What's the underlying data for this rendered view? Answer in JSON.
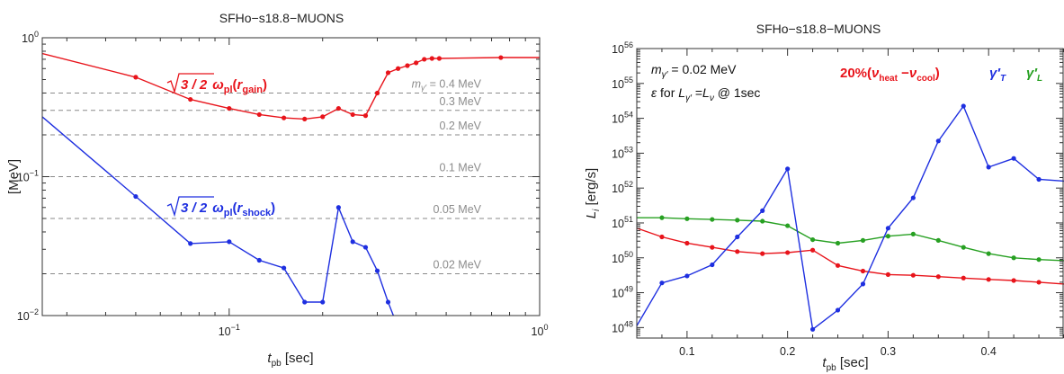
{
  "chart_data": [
    {
      "type": "line",
      "title": "SFHo−s18.8−MUONS",
      "xlabel_main": "t",
      "xlabel_sub": "pb",
      "xlabel_unit": " [sec]",
      "ylabel": "[MeV]",
      "xscale": "log",
      "yscale": "log",
      "xlim": [
        0.025,
        1.0
      ],
      "ylim": [
        0.01,
        1.0
      ],
      "x_ticks": [
        {
          "v": 0.1,
          "base": "10",
          "exp": "−1"
        },
        {
          "v": 1.0,
          "base": "10",
          "exp": "0"
        }
      ],
      "y_ticks": [
        {
          "v": 0.01,
          "base": "10",
          "exp": "−2"
        },
        {
          "v": 0.1,
          "base": "10",
          "exp": "−1"
        },
        {
          "v": 1.0,
          "base": "10",
          "exp": "0"
        }
      ],
      "reference_lines": [
        {
          "y": 0.4,
          "label_sym": "m",
          "label_sub": "γ′",
          "label_value": " = 0.4 MeV"
        },
        {
          "y": 0.3,
          "label": "0.3 MeV"
        },
        {
          "y": 0.2,
          "label": "0.2 MeV"
        },
        {
          "y": 0.1,
          "label": "0.1 MeV"
        },
        {
          "y": 0.05,
          "label": "0.05 MeV"
        },
        {
          "y": 0.02,
          "label": "0.02 MeV"
        }
      ],
      "series": [
        {
          "color": "#e8141b",
          "annotation": {
            "root": "3 / 2",
            "sym": "ω",
            "sub": "pl",
            "arg": "r",
            "arg_sub": "gain"
          },
          "x": [
            0.025,
            0.05,
            0.075,
            0.1,
            0.125,
            0.15,
            0.175,
            0.2,
            0.225,
            0.25,
            0.275,
            0.3,
            0.325,
            0.35,
            0.375,
            0.4,
            0.425,
            0.45,
            0.475,
            0.75,
            1.0
          ],
          "y": [
            0.77,
            0.52,
            0.36,
            0.31,
            0.28,
            0.265,
            0.26,
            0.27,
            0.31,
            0.28,
            0.275,
            0.4,
            0.56,
            0.6,
            0.63,
            0.66,
            0.7,
            0.71,
            0.71,
            0.72,
            0.72
          ]
        },
        {
          "color": "#1e2fe0",
          "annotation": {
            "root": "3 / 2",
            "sym": "ω",
            "sub": "pl",
            "arg": "r",
            "arg_sub": "shock"
          },
          "x": [
            0.025,
            0.05,
            0.075,
            0.1,
            0.125,
            0.15,
            0.175,
            0.2,
            0.225,
            0.25,
            0.275,
            0.3,
            0.325,
            0.35
          ],
          "y": [
            0.27,
            0.072,
            0.033,
            0.034,
            0.025,
            0.022,
            0.0125,
            0.0125,
            0.06,
            0.034,
            0.031,
            0.021,
            0.0125,
            0.0082
          ]
        }
      ]
    },
    {
      "type": "line",
      "title": "SFHo−s18.8−MUONS",
      "xlabel_main": "t",
      "xlabel_sub": "pb",
      "xlabel_unit": " [sec]",
      "ylabel_main": "L",
      "ylabel_sub": "i",
      "ylabel_unit": " [erg/s]",
      "xscale": "linear",
      "yscale": "log",
      "xlim": [
        0.05,
        0.475
      ],
      "ylim": [
        47.7,
        56
      ],
      "x_ticks": [
        {
          "v": 0.1,
          "label": "0.1"
        },
        {
          "v": 0.2,
          "label": "0.2"
        },
        {
          "v": 0.3,
          "label": "0.3"
        },
        {
          "v": 0.4,
          "label": "0.4"
        }
      ],
      "y_ticks": [
        {
          "v": 48,
          "base": "10",
          "exp": "48"
        },
        {
          "v": 49,
          "base": "10",
          "exp": "49"
        },
        {
          "v": 50,
          "base": "10",
          "exp": "50"
        },
        {
          "v": 51,
          "base": "10",
          "exp": "51"
        },
        {
          "v": 52,
          "base": "10",
          "exp": "52"
        },
        {
          "v": 53,
          "base": "10",
          "exp": "53"
        },
        {
          "v": 54,
          "base": "10",
          "exp": "54"
        },
        {
          "v": 55,
          "base": "10",
          "exp": "55"
        },
        {
          "v": 56,
          "base": "10",
          "exp": "56"
        }
      ],
      "annotations": {
        "mass_sym": "m",
        "mass_sub": "γ′",
        "mass_value": " = 0.02 MeV",
        "eps_sym": "ε",
        "eps_text": "  for  ",
        "eps_L": "L",
        "eps_Lsub": "γ′",
        "eps_eq": " =",
        "eps_L2": "L",
        "eps_L2sub": "ν",
        "eps_tail": " @ 1sec"
      },
      "legend": [
        {
          "color": "#e8141b",
          "text_pre": "20%(",
          "sym1": "ν",
          "sub1": "heat",
          "mid": " −",
          "sym2": "ν",
          "sub2": "cool",
          "text_post": ")"
        },
        {
          "color": "#1e2fe0",
          "sym": "γ′",
          "sub": "T"
        },
        {
          "color": "#27a022",
          "sym": "γ′",
          "sub": "L"
        }
      ],
      "series": [
        {
          "color": "#e8141b",
          "x": [
            0.05,
            0.075,
            0.1,
            0.125,
            0.15,
            0.175,
            0.2,
            0.225,
            0.25,
            0.275,
            0.3,
            0.325,
            0.35,
            0.375,
            0.4,
            0.425,
            0.45,
            0.475
          ],
          "y": [
            50.85,
            50.6,
            50.42,
            50.3,
            50.18,
            50.12,
            50.15,
            50.22,
            49.78,
            49.62,
            49.52,
            49.5,
            49.46,
            49.42,
            49.38,
            49.35,
            49.3,
            49.25
          ]
        },
        {
          "color": "#1e2fe0",
          "x": [
            0.05,
            0.075,
            0.1,
            0.125,
            0.15,
            0.175,
            0.2,
            0.225,
            0.25,
            0.275,
            0.3,
            0.325,
            0.35,
            0.375,
            0.4,
            0.425,
            0.45,
            0.475
          ],
          "y": [
            48.05,
            49.28,
            49.48,
            49.8,
            50.6,
            51.35,
            52.55,
            47.95,
            48.5,
            49.25,
            50.85,
            51.72,
            53.35,
            54.35,
            52.6,
            52.85,
            52.25,
            52.2
          ]
        },
        {
          "color": "#27a022",
          "x": [
            0.05,
            0.075,
            0.1,
            0.125,
            0.15,
            0.175,
            0.2,
            0.225,
            0.25,
            0.275,
            0.3,
            0.325,
            0.35,
            0.375,
            0.4,
            0.425,
            0.45,
            0.475
          ],
          "y": [
            51.15,
            51.15,
            51.12,
            51.1,
            51.08,
            51.05,
            50.92,
            50.52,
            50.42,
            50.5,
            50.62,
            50.68,
            50.5,
            50.3,
            50.12,
            50.0,
            49.95,
            49.92
          ]
        }
      ]
    }
  ]
}
